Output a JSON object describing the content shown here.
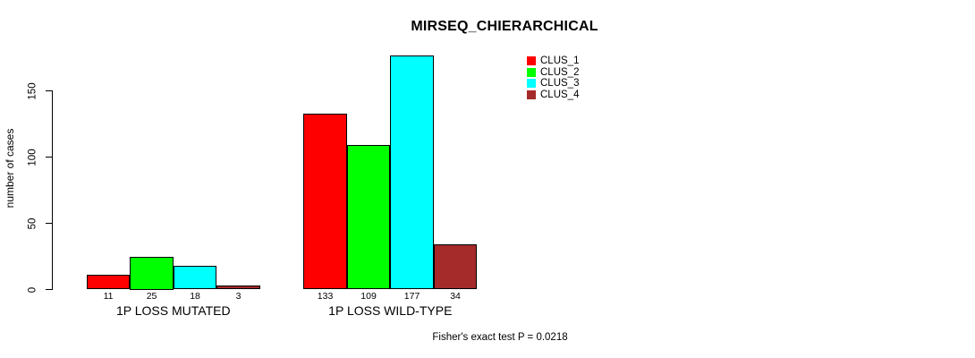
{
  "chart_data": {
    "type": "bar",
    "title": "MIRSEQ_CHIERARCHICAL",
    "ylabel": "number of cases",
    "xlabel": "",
    "categories": [
      "1P LOSS MUTATED",
      "1P LOSS WILD-TYPE"
    ],
    "series": [
      {
        "name": "CLUS_1",
        "color": "#FF0000",
        "values": [
          11,
          133
        ]
      },
      {
        "name": "CLUS_2",
        "color": "#00FF00",
        "values": [
          25,
          109
        ]
      },
      {
        "name": "CLUS_3",
        "color": "#00FFFF",
        "values": [
          18,
          177
        ]
      },
      {
        "name": "CLUS_4",
        "color": "#A52A2A",
        "values": [
          3,
          34
        ]
      }
    ],
    "bar_value_labels_shown": true,
    "y_ticks": [
      0,
      50,
      100,
      150
    ],
    "ylim": [
      0,
      185
    ],
    "grid": false,
    "legend_position": "top-right",
    "bar_border_color": "#000000",
    "annotation": "Fisher's exact test P = 0.0218"
  }
}
